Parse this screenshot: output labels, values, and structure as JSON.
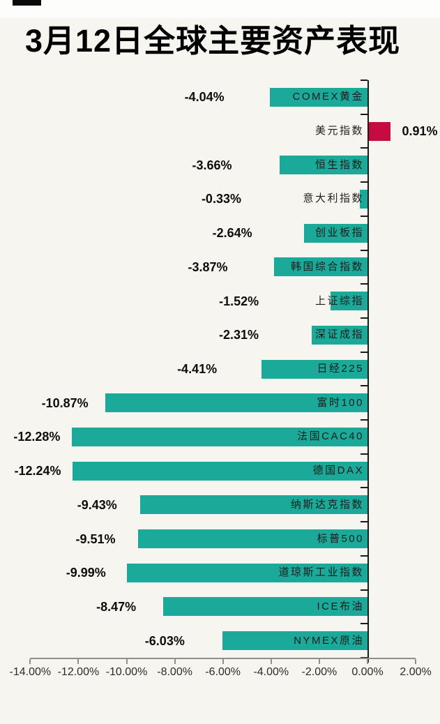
{
  "page": {
    "background": "#F7F5EF"
  },
  "chart_data": {
    "type": "bar",
    "orientation": "horizontal",
    "title": "3月12日全球主要资产表现",
    "value_unit": "%",
    "rows": [
      {
        "name": "COMEX黄金",
        "value": -4.04,
        "label": "-4.04%"
      },
      {
        "name": "美元指数",
        "value": 0.91,
        "label": "0.91%"
      },
      {
        "name": "恒生指数",
        "value": -3.66,
        "label": "-3.66%"
      },
      {
        "name": "意大利指数",
        "value": -0.33,
        "label": "-0.33%"
      },
      {
        "name": "创业板指",
        "value": -2.64,
        "label": "-2.64%"
      },
      {
        "name": "韩国综合指数",
        "value": -3.87,
        "label": "-3.87%"
      },
      {
        "name": "上证综指",
        "value": -1.52,
        "label": "-1.52%"
      },
      {
        "name": "深证成指",
        "value": -2.31,
        "label": "-2.31%"
      },
      {
        "name": "日经225",
        "value": -4.41,
        "label": "-4.41%"
      },
      {
        "name": "富时100",
        "value": -10.87,
        "label": "-10.87%"
      },
      {
        "name": "法国CAC40",
        "value": -12.28,
        "label": "-12.28%"
      },
      {
        "name": "德国DAX",
        "value": -12.24,
        "label": "-12.24%"
      },
      {
        "name": "纳斯达克指数",
        "value": -9.43,
        "label": "-9.43%"
      },
      {
        "name": "标普500",
        "value": -9.51,
        "label": "-9.51%"
      },
      {
        "name": "道琼斯工业指数",
        "value": -9.99,
        "label": "-9.99%"
      },
      {
        "name": "ICE布油",
        "value": -8.47,
        "label": "-8.47%"
      },
      {
        "name": "NYMEX原油",
        "value": -6.03,
        "label": "-6.03%"
      }
    ],
    "x_axis": {
      "range": [
        -14,
        2
      ],
      "tick_values": [
        -14,
        -12,
        -10,
        -8,
        -6,
        -4,
        -2,
        0,
        2
      ],
      "tick_labels": [
        "-14.00%",
        "-12.00%",
        "-10.00%",
        "-8.00%",
        "-6.00%",
        "-4.00%",
        "-2.00%",
        "0.00%",
        "2.00%"
      ]
    },
    "colors": {
      "negative_bar": "#1BA99A",
      "positive_bar": "#C60B41",
      "zero_axis": "#1a1a1a",
      "baseline_axis": "#8F8F88",
      "background": "#F7F5EF",
      "value_label": "#0d0d0d",
      "category_label": "#1d1d1b"
    },
    "grid": false,
    "legend": false
  }
}
